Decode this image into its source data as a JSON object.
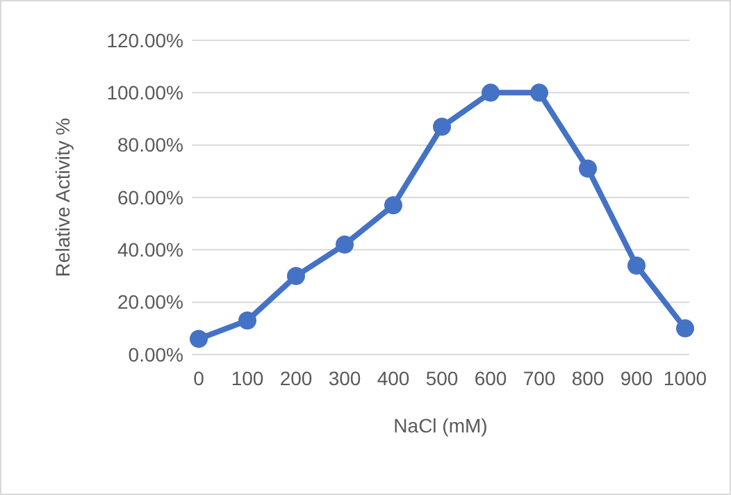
{
  "chart_data": {
    "type": "line",
    "xlabel": "NaCl (mM)",
    "ylabel": "Relative Activity %",
    "categories": [
      "0",
      "100",
      "200",
      "300",
      "400",
      "500",
      "600",
      "700",
      "800",
      "900",
      "1000"
    ],
    "series": [
      {
        "color": "#4472c4",
        "values": [
          6,
          13,
          30,
          42,
          57,
          87,
          100,
          100,
          71,
          34,
          10
        ]
      }
    ],
    "ylim": [
      0,
      120
    ],
    "yticks": [
      {
        "value": 0,
        "label": "0.00%"
      },
      {
        "value": 20,
        "label": "20.00%"
      },
      {
        "value": 40,
        "label": "40.00%"
      },
      {
        "value": 60,
        "label": "60.00%"
      },
      {
        "value": 80,
        "label": "80.00%"
      },
      {
        "value": 100,
        "label": "100.00%"
      },
      {
        "value": 120,
        "label": "120.00%"
      }
    ],
    "grid": "y",
    "marker": "circle",
    "line_style": "solid"
  }
}
